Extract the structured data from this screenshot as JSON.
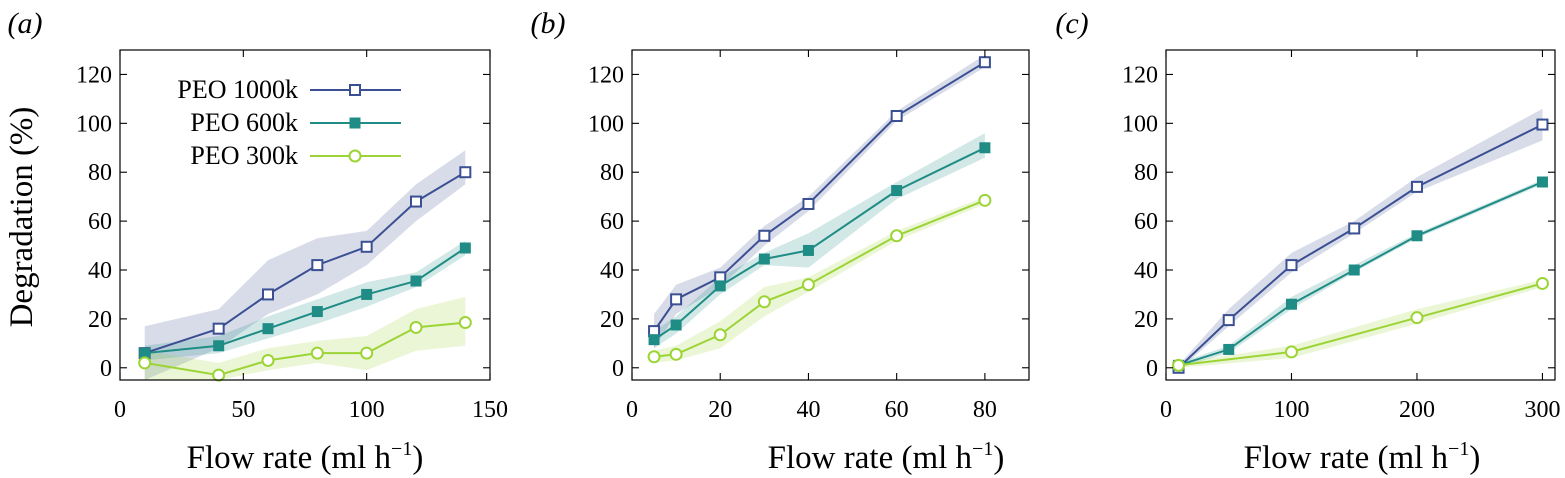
{
  "chart_data": [
    {
      "type": "line",
      "panel_label": "(a)",
      "xlabel": "Flow rate (ml h",
      "xlabel_sup": "−1",
      "xlabel_end": ")",
      "ylabel": "Degradation (%)",
      "xlim": [
        0,
        150
      ],
      "ylim": [
        -5,
        130
      ],
      "xticks": [
        0,
        50,
        100,
        150
      ],
      "yticks": [
        0,
        20,
        40,
        60,
        80,
        100,
        120
      ],
      "grid": false,
      "legend": "top-left",
      "series": [
        {
          "name": "PEO 1000k",
          "color": "#3b4f93",
          "marker": "open-square",
          "x": [
            10,
            40,
            60,
            80,
            100,
            120,
            140
          ],
          "y": [
            6,
            16,
            30,
            42,
            49.5,
            68,
            80
          ],
          "lower": [
            -5,
            8,
            22,
            30,
            42,
            60,
            75
          ],
          "upper": [
            17,
            24,
            44,
            53,
            56,
            75,
            89
          ]
        },
        {
          "name": "PEO 600k",
          "color": "#1f8c85",
          "marker": "filled-square",
          "x": [
            10,
            40,
            60,
            80,
            100,
            120,
            140
          ],
          "y": [
            6,
            9,
            16,
            23,
            30,
            35.5,
            49
          ],
          "lower": [
            3,
            6,
            12,
            18,
            25,
            33,
            46
          ],
          "upper": [
            9,
            13,
            21,
            28,
            35,
            39,
            52
          ]
        },
        {
          "name": "PEO 300k",
          "color": "#9cd436",
          "marker": "open-circle",
          "x": [
            10,
            40,
            60,
            80,
            100,
            120,
            140
          ],
          "y": [
            2,
            -3,
            3,
            6,
            6,
            16.5,
            18.5
          ],
          "lower": [
            -5,
            -5,
            -1,
            2,
            -1,
            7,
            9
          ],
          "upper": [
            7,
            2,
            8,
            11,
            13,
            24,
            29
          ]
        }
      ]
    },
    {
      "type": "line",
      "panel_label": "(b)",
      "xlabel": "Flow rate (ml h",
      "xlabel_sup": "−1",
      "xlabel_end": ")",
      "ylabel": "",
      "xlim": [
        0,
        90
      ],
      "ylim": [
        -5,
        130
      ],
      "xticks": [
        0,
        20,
        40,
        60,
        80
      ],
      "yticks": [
        0,
        20,
        40,
        60,
        80,
        100,
        120
      ],
      "grid": false,
      "legend": "",
      "series": [
        {
          "name": "",
          "color": "#3b4f93",
          "marker": "open-square",
          "x": [
            5,
            10,
            20,
            30,
            40,
            60,
            80
          ],
          "y": [
            15,
            28,
            37,
            54,
            67,
            103,
            125
          ],
          "lower": [
            8,
            22,
            33,
            50,
            64,
            101,
            123
          ],
          "upper": [
            22,
            34,
            41,
            58,
            70,
            105,
            128
          ]
        },
        {
          "name": "",
          "color": "#1f8c85",
          "marker": "filled-square",
          "x": [
            5,
            10,
            20,
            30,
            40,
            60,
            80
          ],
          "y": [
            11.5,
            17.5,
            33.5,
            44.5,
            48,
            72.5,
            90
          ],
          "lower": [
            8,
            14,
            30,
            42,
            41,
            69,
            86
          ],
          "upper": [
            15,
            21,
            37,
            47,
            55,
            76,
            96
          ]
        },
        {
          "name": "",
          "color": "#9cd436",
          "marker": "open-circle",
          "x": [
            5,
            10,
            20,
            30,
            40,
            60,
            80
          ],
          "y": [
            4.5,
            5.5,
            13.5,
            27,
            34,
            54,
            68.5
          ],
          "lower": [
            2,
            3,
            8,
            21,
            31,
            52,
            67
          ],
          "upper": [
            7,
            9,
            19,
            33,
            37,
            56,
            70
          ]
        }
      ]
    },
    {
      "type": "line",
      "panel_label": "(c)",
      "xlabel": "Flow rate (ml h",
      "xlabel_sup": "−1",
      "xlabel_end": ")",
      "ylabel": "",
      "xlim": [
        0,
        310
      ],
      "ylim": [
        -5,
        130
      ],
      "xticks": [
        0,
        100,
        200,
        300
      ],
      "yticks": [
        0,
        20,
        40,
        60,
        80,
        100,
        120
      ],
      "grid": false,
      "legend": "",
      "series": [
        {
          "name": "",
          "color": "#3b4f93",
          "marker": "open-square",
          "x": [
            10,
            50,
            100,
            150,
            200,
            300
          ],
          "y": [
            0,
            19.5,
            42,
            57,
            74,
            99.5
          ],
          "lower": [
            -1,
            17,
            39,
            55,
            72,
            93
          ],
          "upper": [
            1,
            24,
            47,
            60,
            78,
            106
          ]
        },
        {
          "name": "",
          "color": "#1f8c85",
          "marker": "filled-square",
          "x": [
            10,
            50,
            100,
            150,
            200,
            300
          ],
          "y": [
            1,
            7.5,
            26,
            40,
            54,
            76
          ],
          "lower": [
            0,
            6,
            24,
            39,
            53,
            75
          ],
          "upper": [
            2,
            9,
            29,
            42,
            55,
            77
          ]
        },
        {
          "name": "",
          "color": "#9cd436",
          "marker": "open-circle",
          "x": [
            10,
            100,
            200,
            300
          ],
          "y": [
            1,
            6.5,
            20.5,
            34.5
          ],
          "lower": [
            0,
            4,
            18,
            33
          ],
          "upper": [
            2,
            9,
            24,
            36
          ]
        }
      ]
    }
  ]
}
